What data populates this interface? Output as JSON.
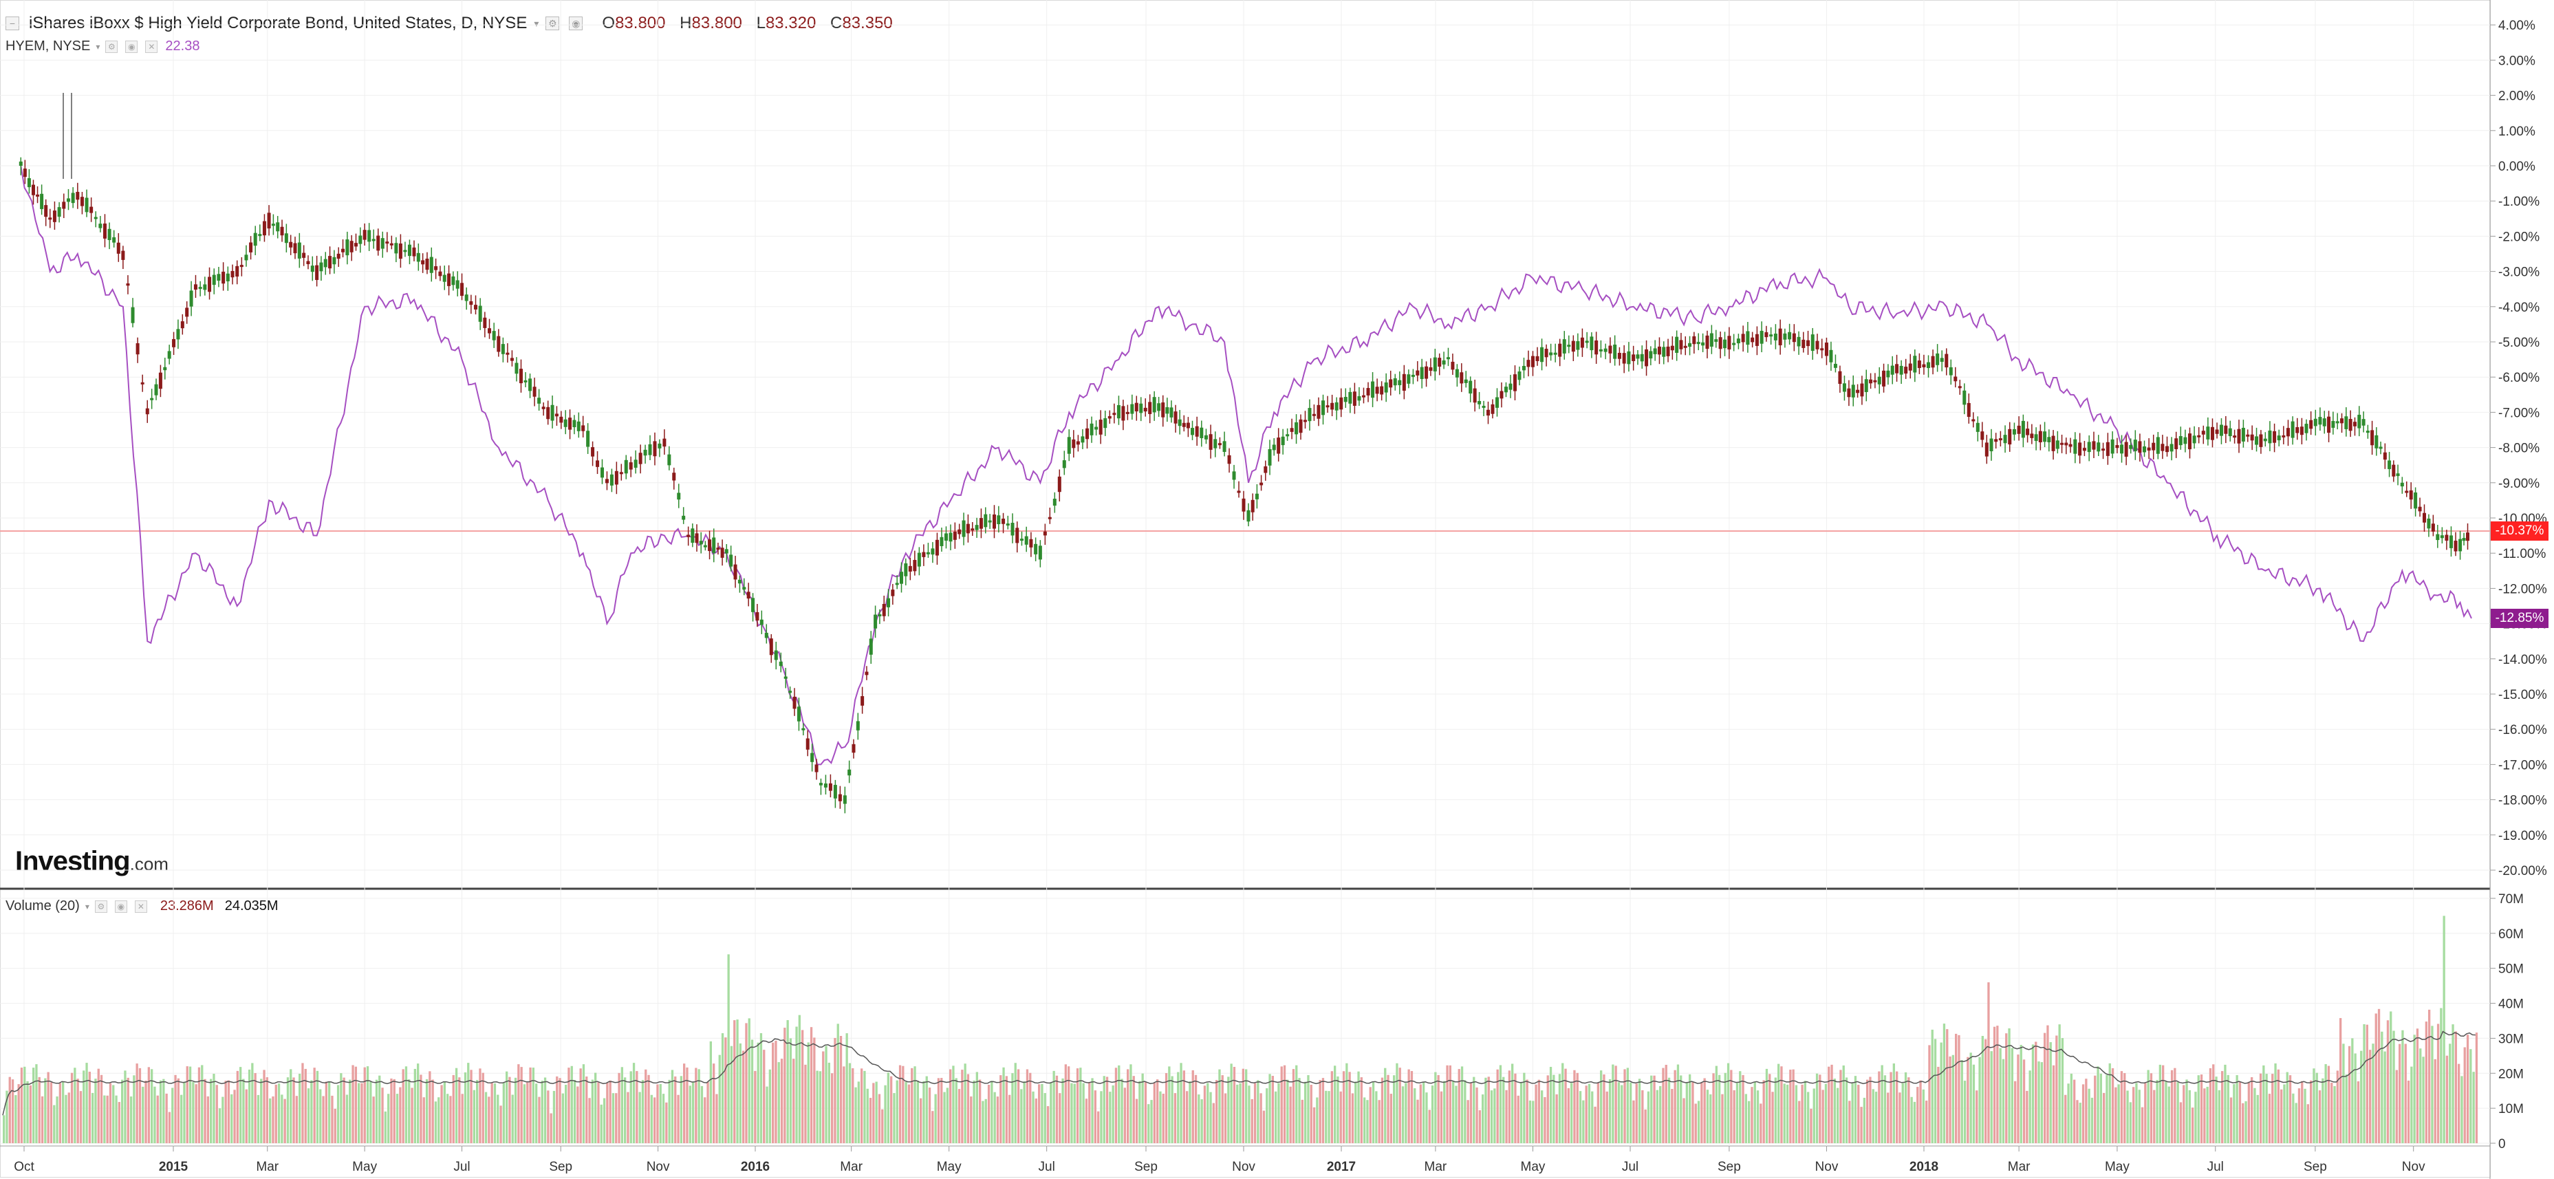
{
  "header": {
    "title": "iShares iBoxx $ High Yield Corporate Bond, United States, D, NYSE",
    "ohlc": [
      {
        "key": "O",
        "value": "83.800"
      },
      {
        "key": "H",
        "value": "83.800"
      },
      {
        "key": "L",
        "value": "83.320"
      },
      {
        "key": "C",
        "value": "83.350"
      }
    ]
  },
  "compare": {
    "symbol": "HYEM, NYSE",
    "value": "22.38",
    "color": "#a64fc2"
  },
  "volume_legend": {
    "label": "Volume (20)",
    "value1": "23.286M",
    "value2": "24.035M"
  },
  "logo": {
    "brand": "Investing",
    "suffix": ".com"
  },
  "colors": {
    "up": "#2e8b2e",
    "down": "#8b1a1a",
    "compare": "#a64fc2",
    "hline": "#f4a3a3",
    "vol_up": "#a6dca0",
    "vol_down": "#e8a0a0",
    "tag_main": "#ff2222",
    "tag_compare": "#8e1c8e"
  },
  "chart_data": [
    {
      "type": "line",
      "title": "iShares iBoxx $ High Yield Corporate Bond, United States, D, NYSE",
      "ylabel": "",
      "y_unit": "%",
      "ylim": [
        -20.5,
        4.5
      ],
      "y_ticks": [
        "4.00%",
        "3.00%",
        "2.00%",
        "1.00%",
        "0.00%",
        "-1.00%",
        "-2.00%",
        "-3.00%",
        "-4.00%",
        "-5.00%",
        "-6.00%",
        "-7.00%",
        "-8.00%",
        "-9.00%",
        "-10.00%",
        "-11.00%",
        "-12.00%",
        "-13.00%",
        "-14.00%",
        "-15.00%",
        "-16.00%",
        "-17.00%",
        "-18.00%",
        "-19.00%",
        "-20.00%"
      ],
      "x_ticks": [
        "Oct",
        "2015",
        "Mar",
        "May",
        "Jul",
        "Sep",
        "Nov",
        "2016",
        "Mar",
        "May",
        "Jul",
        "Sep",
        "Nov",
        "2017",
        "Mar",
        "May",
        "Jul",
        "Sep",
        "Nov",
        "2018",
        "Mar",
        "May",
        "Jul",
        "Sep",
        "Nov"
      ],
      "x": [
        "2014-09-29",
        "2014-10-17",
        "2014-11-03",
        "2014-12-01",
        "2014-12-16",
        "2015-01-15",
        "2015-02-10",
        "2015-03-02",
        "2015-04-01",
        "2015-05-01",
        "2015-06-01",
        "2015-07-01",
        "2015-07-24",
        "2015-08-24",
        "2015-09-15",
        "2015-09-30",
        "2015-10-15",
        "2015-11-05",
        "2015-11-20",
        "2015-12-14",
        "2016-01-05",
        "2016-01-20",
        "2016-02-11",
        "2016-02-26",
        "2016-03-16",
        "2016-04-04",
        "2016-05-02",
        "2016-06-01",
        "2016-06-27",
        "2016-07-15",
        "2016-08-15",
        "2016-09-09",
        "2016-09-30",
        "2016-10-20",
        "2016-11-04",
        "2016-11-20",
        "2016-12-15",
        "2017-01-15",
        "2017-02-15",
        "2017-03-09",
        "2017-04-03",
        "2017-05-01",
        "2017-06-01",
        "2017-07-03",
        "2017-08-10",
        "2017-09-01",
        "2017-10-03",
        "2017-11-01",
        "2017-11-15",
        "2017-12-15",
        "2018-01-15",
        "2018-02-09",
        "2018-03-01",
        "2018-04-02",
        "2018-05-01",
        "2018-06-01",
        "2018-07-02",
        "2018-08-01",
        "2018-09-04",
        "2018-10-01",
        "2018-10-25",
        "2018-11-16",
        "2018-11-30",
        "2018-12-07"
      ],
      "series": [
        {
          "name": "iShares iBoxx $ High Yield Corporate Bond, United States, D, NYSE",
          "values": [
            0.0,
            -1.5,
            -0.8,
            -2.5,
            -7.0,
            -3.5,
            -3.0,
            -1.5,
            -3.0,
            -2.0,
            -2.5,
            -3.5,
            -5.0,
            -7.0,
            -7.5,
            -9.0,
            -8.5,
            -7.8,
            -10.5,
            -11.0,
            -13.0,
            -14.5,
            -17.5,
            -18.0,
            -13.0,
            -11.5,
            -10.5,
            -10.0,
            -11.0,
            -8.0,
            -7.0,
            -6.8,
            -7.5,
            -8.0,
            -10.0,
            -8.0,
            -7.0,
            -6.5,
            -6.0,
            -5.5,
            -7.0,
            -5.5,
            -5.0,
            -5.5,
            -5.0,
            -5.0,
            -4.8,
            -5.2,
            -6.5,
            -5.8,
            -5.5,
            -8.0,
            -7.5,
            -8.0,
            -8.0,
            -8.0,
            -7.5,
            -7.8,
            -7.3,
            -7.3,
            -9.0,
            -10.5,
            -10.8,
            -10.4
          ]
        },
        {
          "name": "HYEM, NYSE",
          "values": [
            0.0,
            -3.0,
            -2.5,
            -4.0,
            -13.5,
            -11.0,
            -12.5,
            -9.5,
            -10.5,
            -4.0,
            -3.8,
            -5.5,
            -8.0,
            -9.5,
            -11.0,
            -13.0,
            -11.0,
            -10.5,
            -10.5,
            -11.0,
            -13.0,
            -14.5,
            -17.0,
            -16.5,
            -13.0,
            -11.0,
            -9.5,
            -8.0,
            -9.0,
            -7.0,
            -5.5,
            -4.0,
            -4.5,
            -5.0,
            -9.0,
            -7.0,
            -5.5,
            -5.0,
            -4.0,
            -4.5,
            -4.0,
            -3.2,
            -3.5,
            -4.0,
            -4.3,
            -4.0,
            -3.3,
            -3.2,
            -4.0,
            -4.2,
            -4.0,
            -4.5,
            -5.5,
            -6.5,
            -7.5,
            -9.0,
            -10.5,
            -11.5,
            -12.0,
            -13.5,
            -11.5,
            -12.2,
            -12.4,
            -12.85
          ]
        }
      ],
      "last_values": {
        "main": "-10.37%",
        "compare": "-12.85%"
      }
    },
    {
      "type": "bar",
      "title": "Volume (20)",
      "ylim": [
        0,
        70000000
      ],
      "y_ticks": [
        "70M",
        "60M",
        "50M",
        "40M",
        "30M",
        "20M",
        "10M",
        "0"
      ],
      "volume_spikes": [
        {
          "x": "2015-12-14",
          "value": 54000000
        },
        {
          "x": "2018-02-09",
          "value": 46000000
        },
        {
          "x": "2018-11-20",
          "value": 65000000
        }
      ],
      "moving_average_period": 20,
      "last_values": {
        "volume": 23286000,
        "ma": 24035000
      }
    }
  ]
}
